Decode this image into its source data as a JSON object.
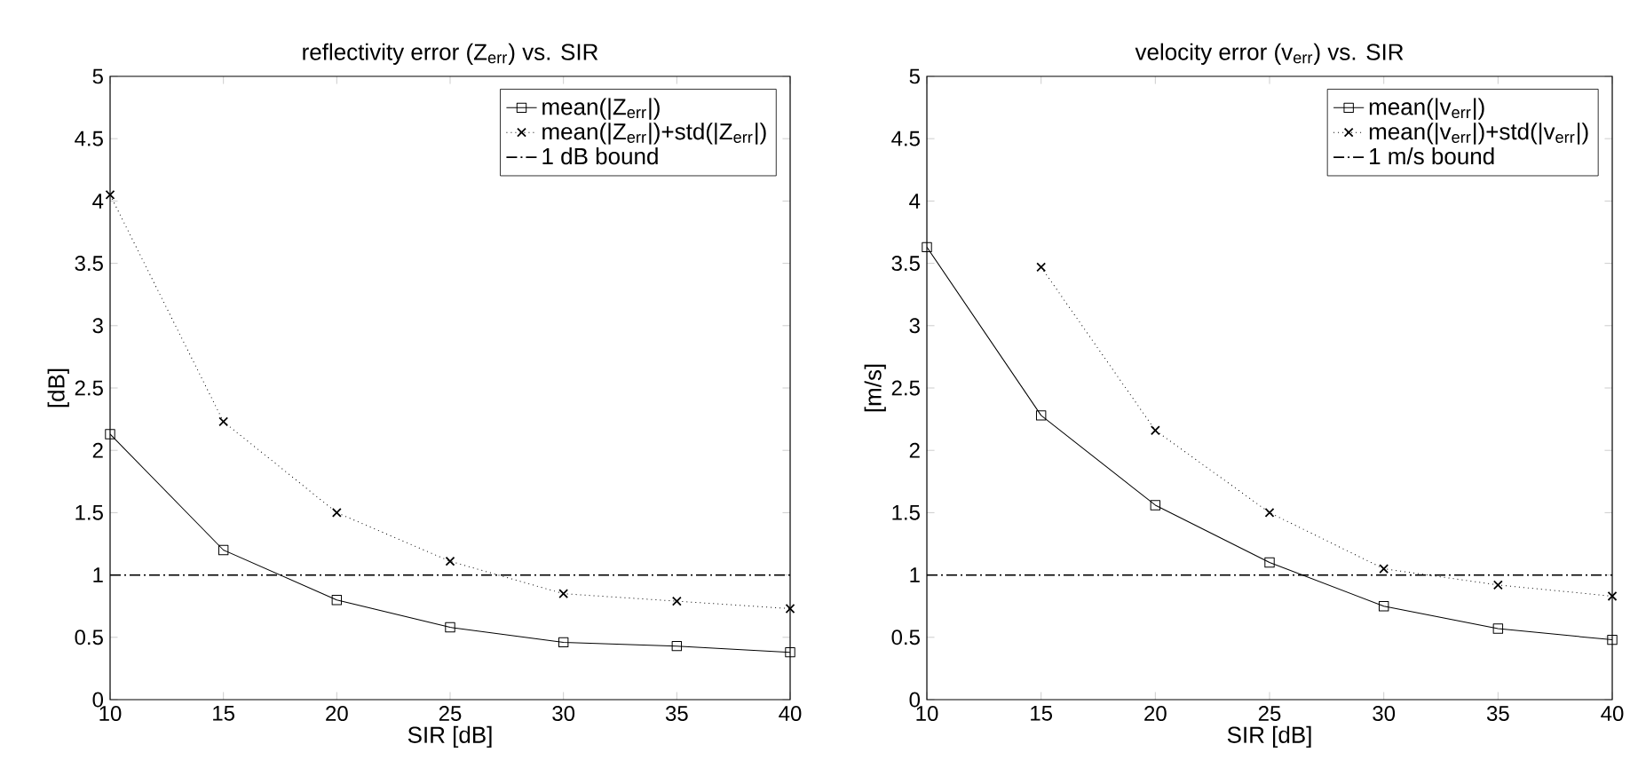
{
  "chart_data": [
    {
      "type": "line",
      "title": "reflectivity error (Z$_{err}$) vs. SIR",
      "xlabel": "SIR [dB]",
      "ylabel": "[dB]",
      "x": [
        10,
        15,
        20,
        25,
        30,
        35,
        40
      ],
      "series": [
        {
          "name": "mean(|Z$_{err}$|)",
          "color": "#000000",
          "marker": "square",
          "line_style": "solid",
          "values": [
            2.13,
            1.2,
            0.8,
            0.58,
            0.46,
            0.43,
            0.38
          ]
        },
        {
          "name": "mean(|Z$_{err}$|)+std(|Z$_{err}$|)",
          "color": "#000000",
          "marker": "cross",
          "line_style": "dotted",
          "values": [
            4.05,
            2.23,
            1.5,
            1.11,
            0.85,
            0.79,
            0.73
          ]
        }
      ],
      "ref_lines": [
        {
          "axis": "y",
          "value": 1,
          "label": "1 dB bound",
          "color": "#000000",
          "line_style": "dashdot"
        }
      ],
      "xlim": [
        10,
        40
      ],
      "ylim": [
        0,
        5
      ],
      "xticks": [
        10,
        15,
        20,
        25,
        30,
        35,
        40
      ],
      "yticks": [
        0,
        0.5,
        1,
        1.5,
        2,
        2.5,
        3,
        3.5,
        4,
        4.5,
        5
      ],
      "legend": "top right",
      "grid": false
    },
    {
      "type": "line",
      "title": "velocity error (v$_{err}$) vs. SIR",
      "xlabel": "SIR [dB]",
      "ylabel": "[m/s]",
      "x": [
        10,
        15,
        20,
        25,
        30,
        35,
        40
      ],
      "series": [
        {
          "name": "mean(|v$_{err}$|)",
          "color": "#000000",
          "marker": "square",
          "line_style": "solid",
          "values": [
            3.63,
            2.28,
            1.56,
            1.1,
            0.75,
            0.57,
            0.48
          ]
        },
        {
          "name": "mean(|v$_{err}$|)+std(|v$_{err}$|)",
          "color": "#000000",
          "marker": "cross",
          "line_style": "dotted",
          "values": [
            null,
            3.47,
            2.16,
            1.5,
            1.05,
            0.92,
            0.83
          ]
        }
      ],
      "ref_lines": [
        {
          "axis": "y",
          "value": 1,
          "label": "1 m/s bound",
          "color": "#000000",
          "line_style": "dashdot"
        }
      ],
      "xlim": [
        10,
        40
      ],
      "ylim": [
        0,
        5
      ],
      "xticks": [
        10,
        15,
        20,
        25,
        30,
        35,
        40
      ],
      "yticks": [
        0,
        0.5,
        1,
        1.5,
        2,
        2.5,
        3,
        3.5,
        4,
        4.5,
        5
      ],
      "legend": "top right",
      "grid": false
    }
  ]
}
